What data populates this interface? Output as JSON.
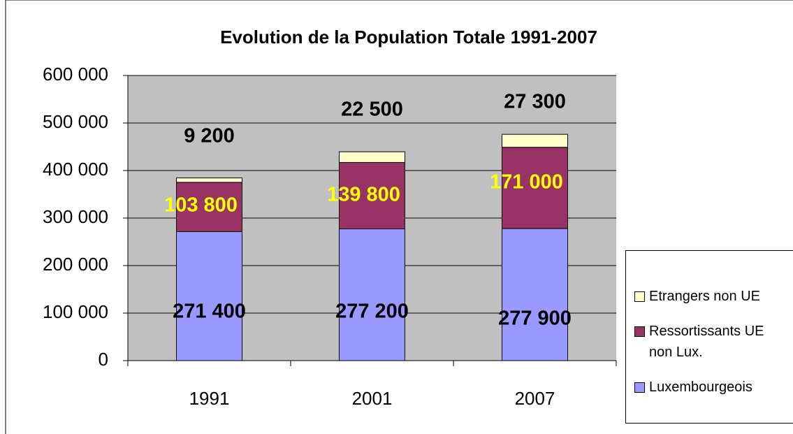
{
  "chart_data": {
    "type": "stacked-bar",
    "title": "Evolution de la Population Totale 1991-2007",
    "categories": [
      "1991",
      "2001",
      "2007"
    ],
    "series": [
      {
        "name": "Luxembourgeois",
        "color": "#9999ff",
        "values": [
          271400,
          277200,
          277900
        ],
        "value_labels": [
          "271 400",
          "277 200",
          "277 900"
        ]
      },
      {
        "name": "Ressortissants UE non Lux.",
        "color": "#993366",
        "values": [
          103800,
          139800,
          171000
        ],
        "value_labels": [
          "103 800",
          "139 800",
          "171 000"
        ]
      },
      {
        "name": "Etrangers non UE",
        "color": "#ffffcc",
        "values": [
          9200,
          22500,
          27300
        ],
        "value_labels": [
          "9 200",
          "22 500",
          "27 300"
        ]
      }
    ],
    "ylim": [
      0,
      600000
    ],
    "yticks": [
      0,
      {
        "value": 100000,
        "label": "100 000"
      },
      {
        "value": 200000,
        "label": "200 000"
      },
      {
        "value": 300000,
        "label": "300 000"
      },
      {
        "value": 400000,
        "label": "400 000"
      },
      {
        "value": 500000,
        "label": "500 000"
      },
      {
        "value": 600000,
        "label": "600 000"
      }
    ],
    "grid": true
  }
}
